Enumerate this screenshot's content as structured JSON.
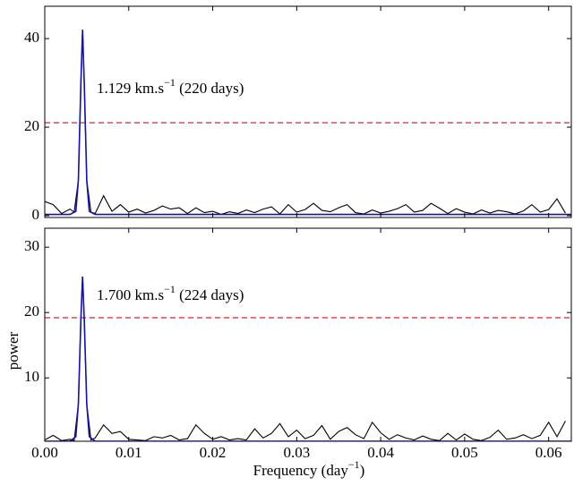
{
  "chart_data": [
    {
      "type": "line",
      "ylim": [
        -0.4,
        47.3
      ],
      "yticks": [
        0,
        20,
        40
      ],
      "xlim": [
        0,
        0.0627
      ],
      "xticks": [
        0,
        0.01,
        0.02,
        0.03,
        0.04,
        0.05,
        0.06
      ],
      "annotation": [
        "1.129 km.s",
        "−1",
        " (220 days)"
      ],
      "hline": {
        "value": 21,
        "color": "#e02020"
      },
      "series": [
        {
          "color": "#000000",
          "x": [
            0,
            0.001,
            0.002,
            0.003,
            0.0035,
            0.004,
            0.0043,
            0.0045,
            0.0047,
            0.005,
            0.0055,
            0.006,
            0.007,
            0.008,
            0.009,
            0.01,
            0.011,
            0.012,
            0.013,
            0.014,
            0.015,
            0.016,
            0.017,
            0.018,
            0.019,
            0.02,
            0.021,
            0.022,
            0.023,
            0.024,
            0.025,
            0.026,
            0.027,
            0.028,
            0.029,
            0.03,
            0.031,
            0.032,
            0.033,
            0.034,
            0.035,
            0.036,
            0.037,
            0.038,
            0.039,
            0.04,
            0.041,
            0.042,
            0.043,
            0.044,
            0.045,
            0.046,
            0.047,
            0.048,
            0.049,
            0.05,
            0.051,
            0.052,
            0.053,
            0.054,
            0.055,
            0.056,
            0.057,
            0.058,
            0.059,
            0.06,
            0.061,
            0.062
          ],
          "values": [
            3.2,
            2.5,
            0.5,
            1.5,
            0.8,
            8,
            30,
            42,
            30,
            8,
            0.8,
            0.5,
            4.5,
            1.0,
            2.5,
            0.8,
            1.5,
            0.6,
            1.2,
            2.2,
            1.5,
            1.8,
            0.5,
            1.8,
            0.7,
            1.0,
            0.3,
            0.9,
            0.5,
            1.3,
            0.7,
            1.5,
            2.0,
            0.4,
            2.5,
            0.8,
            1.4,
            2.8,
            1.2,
            0.9,
            1.8,
            2.5,
            0.7,
            0.4,
            1.3,
            0.6,
            1.0,
            1.6,
            2.5,
            0.8,
            1.2,
            2.8,
            1.7,
            0.5,
            1.6,
            0.8,
            0.4,
            1.3,
            0.6,
            1.2,
            0.9,
            0.4,
            1.1,
            2.5,
            0.8,
            1.4,
            3.8,
            0.6
          ]
        },
        {
          "color": "#1010c0",
          "x": [
            0,
            0.003,
            0.0037,
            0.004,
            0.0043,
            0.0045,
            0.0047,
            0.005,
            0.0053,
            0.006,
            0.0627
          ],
          "values": [
            0.3,
            0.3,
            1,
            8,
            30,
            42,
            30,
            8,
            1,
            0.3,
            0.3
          ]
        }
      ]
    },
    {
      "type": "line",
      "ylim": [
        0.3,
        32.9
      ],
      "yticks": [
        10,
        20,
        30
      ],
      "xlim": [
        0,
        0.0627
      ],
      "xticks": [
        {
          "value": 0,
          "label": "0.00"
        },
        {
          "value": 0.01,
          "label": "0.01"
        },
        {
          "value": 0.02,
          "label": "0.02"
        },
        {
          "value": 0.03,
          "label": "0.03"
        },
        {
          "value": 0.04,
          "label": "0.04"
        },
        {
          "value": 0.05,
          "label": "0.05"
        },
        {
          "value": 0.06,
          "label": "0.06"
        }
      ],
      "xlabel": [
        "Frequency (day",
        "−1",
        ")"
      ],
      "ylabel": "power",
      "annotation": [
        "1.700 km.s",
        "−1",
        " (224 days)"
      ],
      "hline": {
        "value": 19.2,
        "color": "#e02020"
      },
      "series": [
        {
          "color": "#000000",
          "x": [
            0,
            0.001,
            0.002,
            0.003,
            0.0035,
            0.004,
            0.0043,
            0.0045,
            0.0047,
            0.005,
            0.0055,
            0.006,
            0.007,
            0.008,
            0.009,
            0.01,
            0.011,
            0.012,
            0.013,
            0.014,
            0.015,
            0.016,
            0.017,
            0.018,
            0.019,
            0.02,
            0.021,
            0.022,
            0.023,
            0.024,
            0.025,
            0.026,
            0.027,
            0.028,
            0.029,
            0.03,
            0.031,
            0.032,
            0.033,
            0.034,
            0.035,
            0.036,
            0.037,
            0.038,
            0.039,
            0.04,
            0.041,
            0.042,
            0.043,
            0.044,
            0.045,
            0.046,
            0.047,
            0.048,
            0.049,
            0.05,
            0.051,
            0.052,
            0.053,
            0.054,
            0.055,
            0.056,
            0.057,
            0.058,
            0.059,
            0.06,
            0.061,
            0.062
          ],
          "values": [
            0.5,
            1.2,
            0.4,
            0.6,
            0.4,
            6,
            19,
            25.5,
            19,
            6,
            0.5,
            0.8,
            2.8,
            1.5,
            1.8,
            0.6,
            0.5,
            0.4,
            1.0,
            0.8,
            1.2,
            0.5,
            0.7,
            2.8,
            1.5,
            0.6,
            1.0,
            0.5,
            0.7,
            0.5,
            2.2,
            0.8,
            1.5,
            3.0,
            1.0,
            2.0,
            0.7,
            1.2,
            2.7,
            0.6,
            1.8,
            2.4,
            1.3,
            0.7,
            3.2,
            1.6,
            0.6,
            1.3,
            0.8,
            0.5,
            1.1,
            0.6,
            0.4,
            1.5,
            0.5,
            1.4,
            0.6,
            0.4,
            0.9,
            2.0,
            0.6,
            0.8,
            1.3,
            0.7,
            1.2,
            3.2,
            1.0,
            3.4
          ]
        },
        {
          "color": "#1010c0",
          "x": [
            0,
            0.003,
            0.0037,
            0.004,
            0.0043,
            0.0045,
            0.0047,
            0.005,
            0.0053,
            0.006,
            0.0627
          ],
          "values": [
            0.3,
            0.3,
            1,
            6,
            19,
            25.5,
            19,
            6,
            1,
            0.3,
            0.3
          ]
        }
      ]
    }
  ]
}
